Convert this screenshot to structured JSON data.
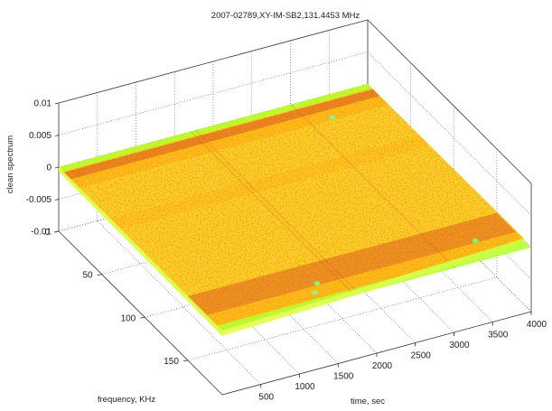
{
  "chart_data": {
    "type": "surface-3d",
    "title": "2007-02789,XY-IM-SB2,131.4453 MHz",
    "xlabel": "time, sec",
    "ylabel": "frequency, KHz",
    "zlabel": "clean spectrum",
    "x_ticks": [
      500,
      1000,
      1500,
      2000,
      2500,
      3000,
      3500,
      4000
    ],
    "y_ticks": [
      0,
      50,
      100,
      150
    ],
    "z_ticks": [
      0.01,
      0.005,
      0,
      -0.005,
      -0.01
    ],
    "z_tick_labels": [
      "0.01",
      "0.005",
      "0",
      "-0.005",
      "-0.01"
    ],
    "xlim": [
      0,
      4000
    ],
    "ylim": [
      0,
      190
    ],
    "zlim": [
      -0.01,
      0.01
    ],
    "grid": true,
    "colormap": [
      "#b5ff2e",
      "#ffe300",
      "#ff9a00",
      "#d84a1a"
    ],
    "surface_base_color": "#ffd21e"
  }
}
